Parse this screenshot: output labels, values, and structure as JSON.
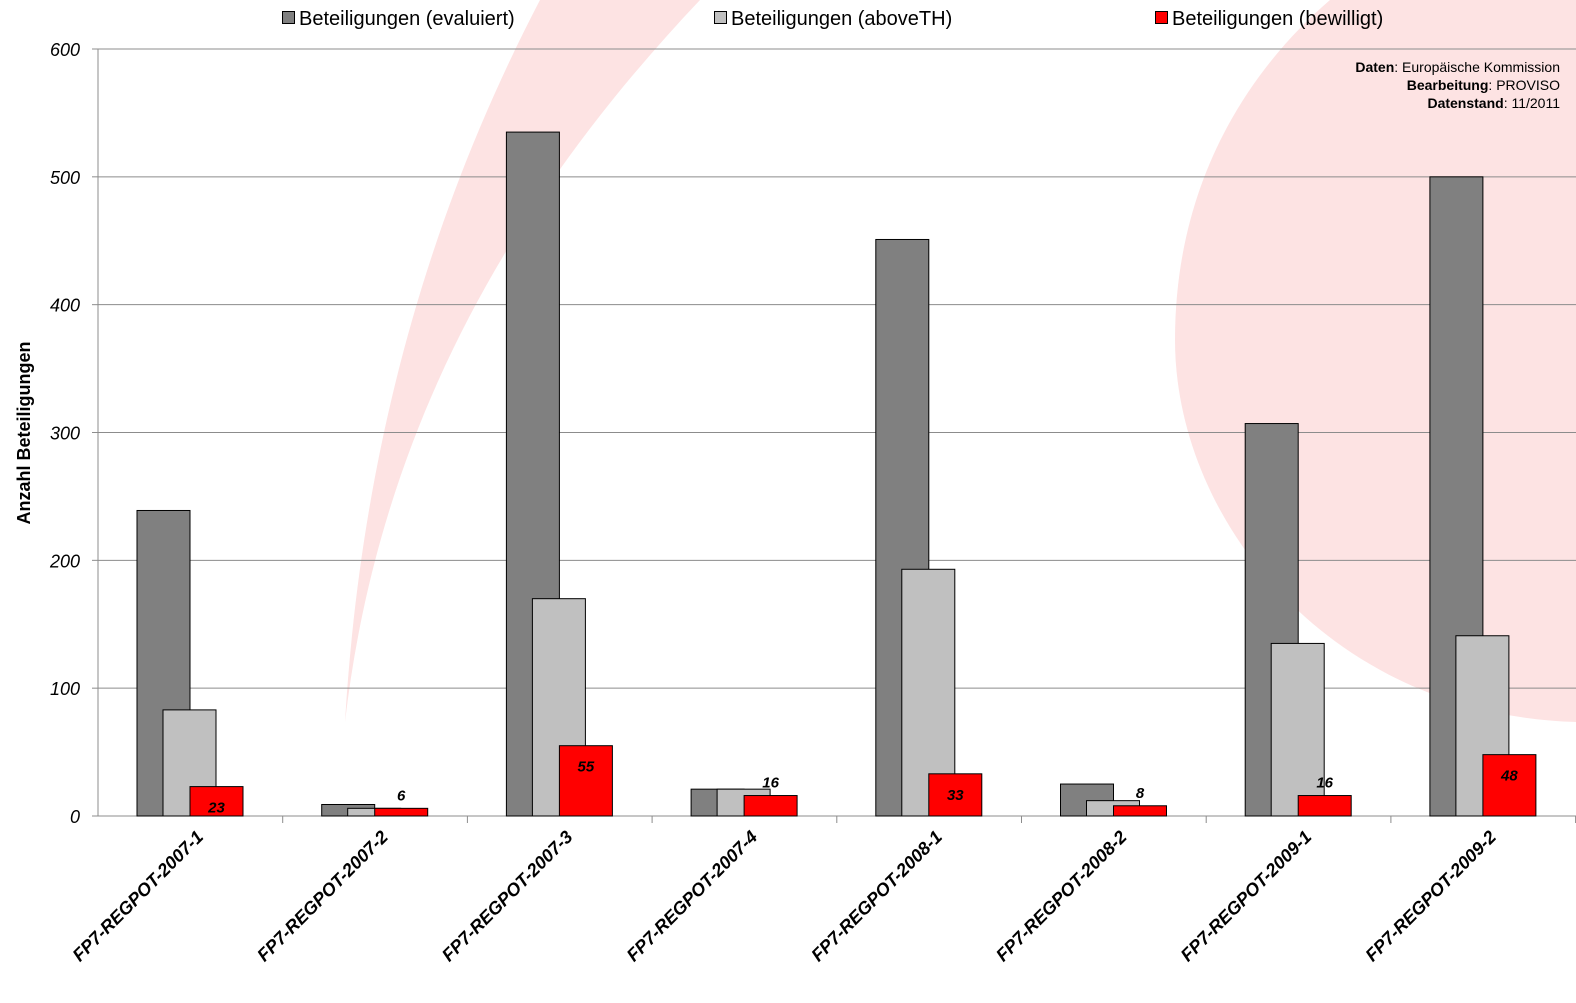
{
  "legend": [
    {
      "label": "Beteiligungen (evaluiert)",
      "color": "#808080"
    },
    {
      "label": "Beteiligungen (aboveTH)",
      "color": "#c0c0c0"
    },
    {
      "label": "Beteiligungen (bewilligt)",
      "color": "#ff0000"
    }
  ],
  "credits": {
    "data_label": "Daten",
    "data_value": "Europäische Kommission",
    "edit_label": "Bearbeitung",
    "edit_value": "PROVISO",
    "date_label": "Datenstand",
    "date_value": "11/2011"
  },
  "chart_data": {
    "type": "bar",
    "title": "",
    "xlabel": "",
    "ylabel": "Anzahl Beteiligungen",
    "ylim": [
      0,
      600
    ],
    "yticks": [
      0,
      100,
      200,
      300,
      400,
      500,
      600
    ],
    "grid": true,
    "legend_position": "top",
    "categories": [
      "FP7-REGPOT-2007-1",
      "FP7-REGPOT-2007-2",
      "FP7-REGPOT-2007-3",
      "FP7-REGPOT-2007-4",
      "FP7-REGPOT-2008-1",
      "FP7-REGPOT-2008-2",
      "FP7-REGPOT-2009-1",
      "FP7-REGPOT-2009-2"
    ],
    "series": [
      {
        "name": "Beteiligungen (evaluiert)",
        "color": "#808080",
        "values": [
          239,
          9,
          535,
          21,
          451,
          25,
          307,
          500
        ]
      },
      {
        "name": "Beteiligungen (aboveTH)",
        "color": "#c0c0c0",
        "values": [
          83,
          6,
          170,
          21,
          193,
          12,
          135,
          141
        ]
      },
      {
        "name": "Beteiligungen (bewilligt)",
        "color": "#ff0000",
        "values": [
          23,
          6,
          55,
          16,
          33,
          8,
          16,
          48
        ],
        "data_labels": true
      }
    ]
  }
}
